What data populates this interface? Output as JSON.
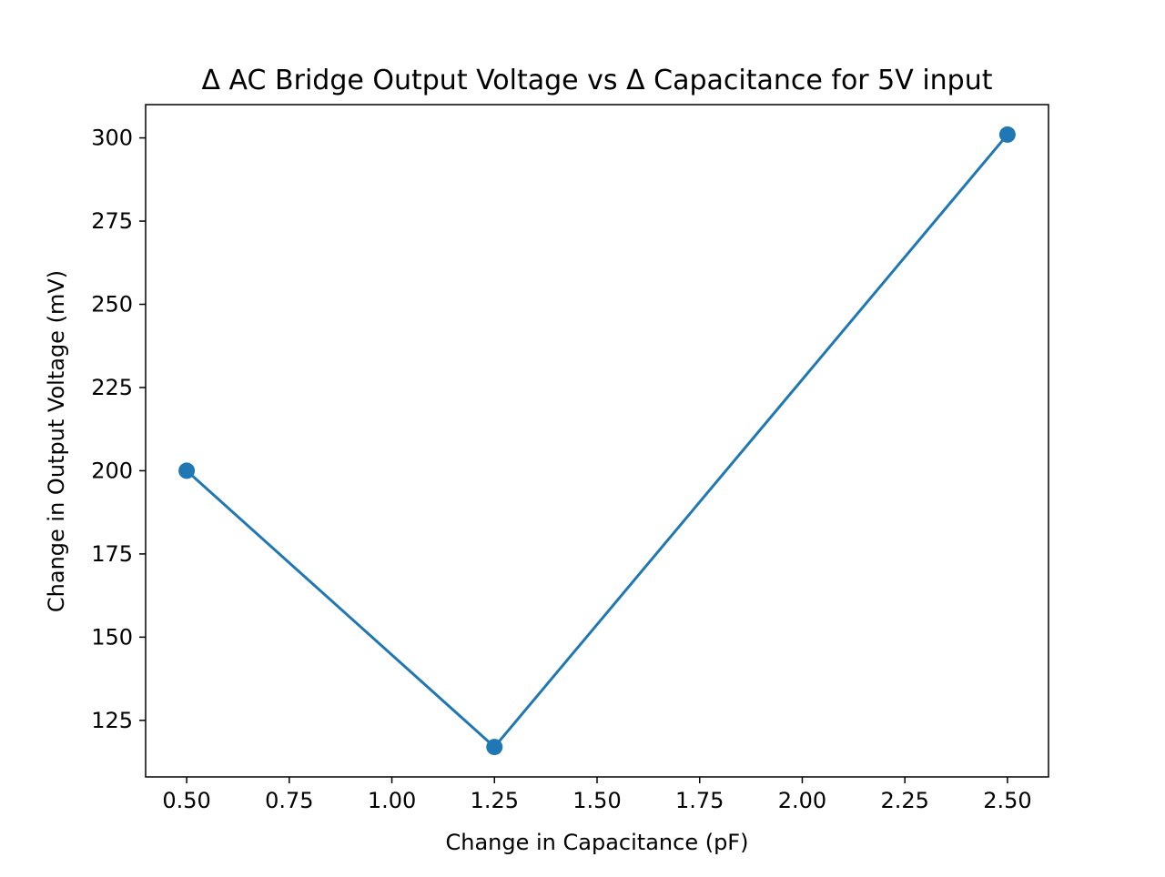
{
  "chart_data": {
    "type": "line",
    "title": "Δ AC Bridge Output Voltage vs Δ Capacitance for 5V input",
    "xlabel": "Change in Capacitance (pF)",
    "ylabel": "Change in Output Voltage (mV)",
    "xlim": [
      0.4,
      2.6
    ],
    "ylim": [
      108,
      310
    ],
    "grid": false,
    "legend": "none",
    "x_ticks": [
      "0.50",
      "0.75",
      "1.00",
      "1.25",
      "1.50",
      "1.75",
      "2.00",
      "2.25",
      "2.50"
    ],
    "y_ticks": [
      "125",
      "150",
      "175",
      "200",
      "225",
      "250",
      "275",
      "300"
    ],
    "series": [
      {
        "color": "#1f77b4",
        "marker": "circle",
        "x": [
          0.5,
          1.25,
          2.5
        ],
        "y": [
          200,
          117,
          301
        ]
      }
    ]
  }
}
